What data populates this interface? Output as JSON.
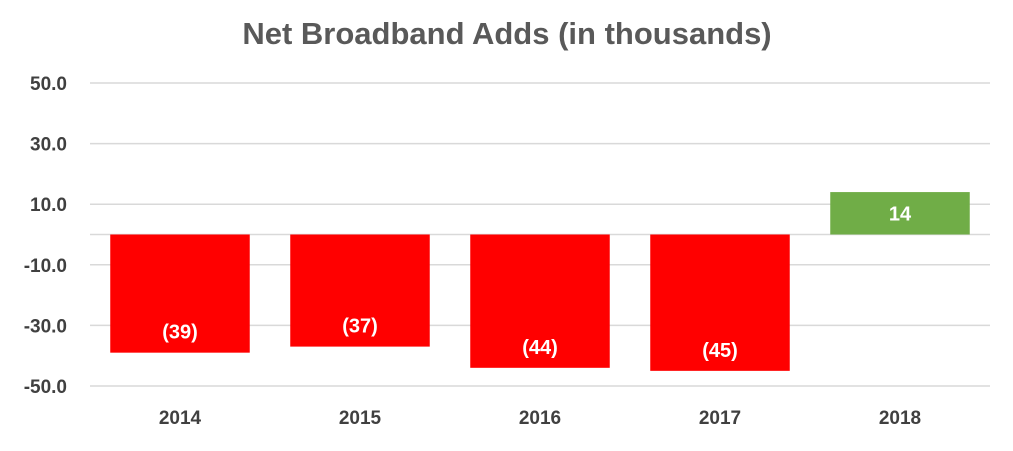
{
  "chart_data": {
    "type": "bar",
    "title": "Net Broadband Adds (in thousands)",
    "categories": [
      "2014",
      "2015",
      "2016",
      "2017",
      "2018"
    ],
    "values": [
      -39,
      -37,
      -44,
      -45,
      14
    ],
    "data_labels": [
      "(39)",
      "(37)",
      "(44)",
      "(45)",
      "14"
    ],
    "yticks": [
      "50.0",
      "30.0",
      "10.0",
      "-10.0",
      "-30.0",
      "-50.0"
    ],
    "ylim": [
      -50,
      50
    ],
    "grid": true,
    "legend": "none",
    "colors": {
      "negative": "#ff0000",
      "positive": "#70ad47",
      "grid": "#d9d9d9",
      "text": "#404040",
      "title": "#595959"
    }
  }
}
